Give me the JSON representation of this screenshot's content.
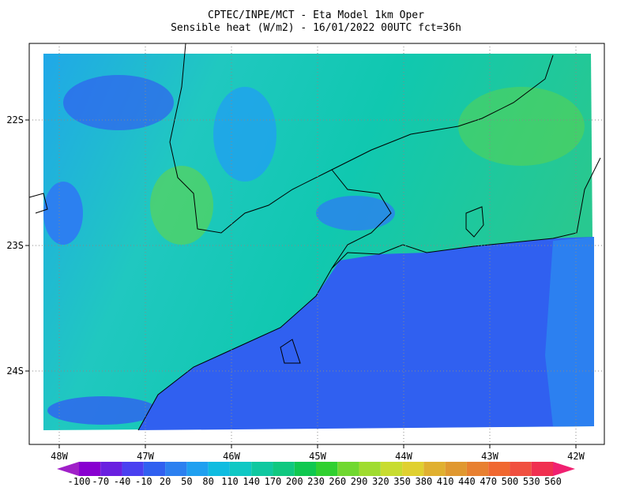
{
  "header": {
    "line1": "CPTEC/INPE/MCT -  Eta Model 1km Oper",
    "line2": "Sensible heat (W/m2) - 16/01/2022 00UTC fct=36h"
  },
  "map": {
    "longitude_labels": [
      "48W",
      "47W",
      "46W",
      "45W",
      "44W",
      "43W",
      "42W"
    ],
    "latitude_labels": [
      "22S",
      "23S",
      "24S"
    ]
  },
  "colorbar": {
    "levels": [
      -100,
      -70,
      -40,
      -10,
      20,
      50,
      80,
      110,
      140,
      170,
      200,
      230,
      260,
      290,
      320,
      350,
      380,
      410,
      440,
      470,
      500,
      530,
      560
    ],
    "colors": [
      "#a020c8",
      "#8800d0",
      "#6a20e0",
      "#4a40f0",
      "#3060f0",
      "#2c80f0",
      "#20a0f0",
      "#10bce0",
      "#10c8c4",
      "#10c8a0",
      "#10c880",
      "#10c850",
      "#30d030",
      "#70d830",
      "#a0dc30",
      "#c8dc30",
      "#e0d030",
      "#e0b030",
      "#e09830",
      "#e88030",
      "#f06830",
      "#f05040",
      "#f03050",
      "#f02070"
    ]
  }
}
